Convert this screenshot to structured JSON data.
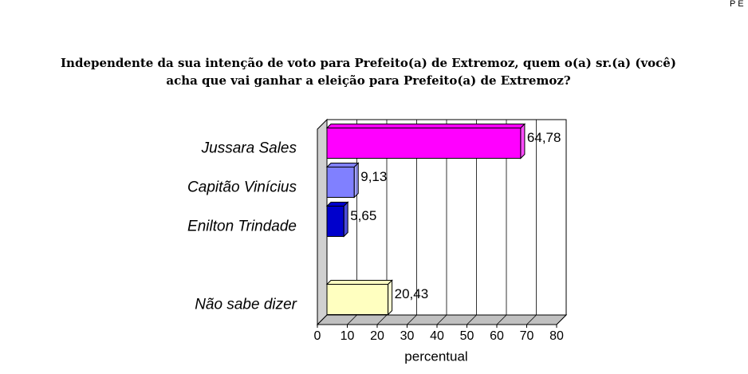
{
  "corner_text": "P E",
  "chart_data": {
    "type": "bar3d-horizontal",
    "title": [
      "Independente da sua intenção de voto para Prefeito(a) de Extremoz, quem o(a) sr.(a) (você)",
      "acha que vai ganhar a eleição para Prefeito(a) de Extremoz?"
    ],
    "categories": [
      "Jussara Sales",
      "Capitão Vinícius",
      "Enilton Trindade",
      null,
      "Não sabe dizer"
    ],
    "values": [
      64.78,
      9.13,
      5.65,
      null,
      20.43
    ],
    "value_labels": [
      "64,78",
      "9,13",
      "5,65",
      null,
      "20,43"
    ],
    "colors": [
      "#ff00ff",
      "#8080ff",
      "#0000cc",
      null,
      "#ffffc0"
    ],
    "x_label": "percentual",
    "xlim": [
      0,
      80
    ],
    "xticks": [
      0,
      10,
      20,
      30,
      40,
      50,
      60,
      70,
      80
    ],
    "grid": true
  }
}
